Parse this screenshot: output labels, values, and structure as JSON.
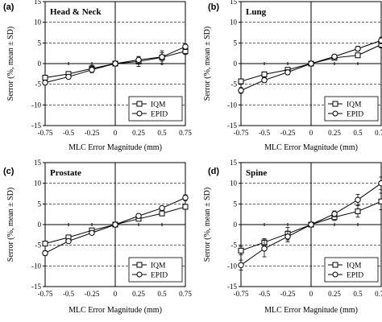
{
  "chart_data": [
    {
      "type": "line",
      "panel": "(a)",
      "title": "Head & Neck",
      "xlabel": "MLC Error Magnitude (mm)",
      "ylabel": "Serror (%, mean ± SD)",
      "xlim": [
        -0.75,
        0.75
      ],
      "ylim": [
        -15,
        15
      ],
      "x": [
        -0.75,
        -0.5,
        -0.25,
        0,
        0.25,
        0.5,
        0.75
      ],
      "x_tick_labels": [
        "-0.75",
        "-0.5",
        "-0.25",
        "0",
        "0.25",
        "0.5",
        "0.75"
      ],
      "y_ticks": [
        -15,
        -10,
        -5,
        0,
        5,
        10,
        15
      ],
      "grid": "horizontal dashed",
      "legend_position": "bottom-right",
      "series": [
        {
          "name": "IQM",
          "marker": "square",
          "values": [
            -3.4,
            -2.5,
            -1.2,
            0,
            0.5,
            1.5,
            3.0
          ],
          "sd": [
            0.5,
            0.5,
            0.8,
            0,
            1.2,
            1.6,
            0.8
          ]
        },
        {
          "name": "EPID",
          "marker": "circle",
          "values": [
            -4.6,
            -3.2,
            -1.5,
            0,
            0.9,
            1.6,
            4.1
          ],
          "sd": [
            0.5,
            0.5,
            0.7,
            0,
            0.8,
            1.0,
            0.7
          ]
        }
      ]
    },
    {
      "type": "line",
      "panel": "(b)",
      "title": "Lung",
      "xlabel": "MLC Error Magnitude (mm)",
      "ylabel": "Serror (%, mean ± SD)",
      "xlim": [
        -0.75,
        0.75
      ],
      "ylim": [
        -15,
        15
      ],
      "x": [
        -0.75,
        -0.5,
        -0.25,
        0,
        0.25,
        0.5,
        0.75
      ],
      "x_tick_labels": [
        "-0.75",
        "-0.5",
        "-0.25",
        "0",
        "0.25",
        "0.5",
        "0.75"
      ],
      "y_ticks": [
        -15,
        -10,
        -5,
        0,
        5,
        10,
        15
      ],
      "grid": "horizontal dashed",
      "legend_position": "bottom-right",
      "series": [
        {
          "name": "IQM",
          "marker": "square",
          "values": [
            -4.3,
            -2.6,
            -1.5,
            0,
            1.4,
            2.0,
            4.6
          ],
          "sd": [
            0.6,
            0.6,
            0.5,
            0,
            0.4,
            0.5,
            0.8
          ]
        },
        {
          "name": "EPID",
          "marker": "circle",
          "values": [
            -6.5,
            -4.0,
            -2.1,
            0,
            1.7,
            3.6,
            5.6
          ],
          "sd": [
            0.7,
            0.6,
            0.6,
            0,
            0.5,
            0.6,
            0.8
          ]
        }
      ]
    },
    {
      "type": "line",
      "panel": "(c)",
      "title": "Prostate",
      "xlabel": "MLC Error Magnitude (mm)",
      "ylabel": "Serror (%, mean ± SD)",
      "xlim": [
        -0.75,
        0.75
      ],
      "ylim": [
        -15,
        15
      ],
      "x": [
        -0.75,
        -0.5,
        -0.25,
        0,
        0.25,
        0.5,
        0.75
      ],
      "x_tick_labels": [
        "-0.75",
        "-0.5",
        "-0.25",
        "0",
        "0.25",
        "0.5",
        "0.75"
      ],
      "y_ticks": [
        -15,
        -10,
        -5,
        0,
        5,
        10,
        15
      ],
      "grid": "horizontal dashed",
      "legend_position": "bottom-right",
      "series": [
        {
          "name": "IQM",
          "marker": "square",
          "values": [
            -4.6,
            -3.1,
            -1.4,
            0,
            1.4,
            2.7,
            4.3
          ],
          "sd": [
            0.5,
            0.4,
            0.4,
            0,
            0.4,
            0.4,
            0.6
          ]
        },
        {
          "name": "EPID",
          "marker": "circle",
          "values": [
            -6.9,
            -4.0,
            -2.0,
            0,
            2.1,
            4.0,
            6.5
          ],
          "sd": [
            0.6,
            0.5,
            0.4,
            0,
            0.5,
            0.5,
            0.7
          ]
        }
      ]
    },
    {
      "type": "line",
      "panel": "(d)",
      "title": "Spine",
      "xlabel": "MLC Error Magnitude (mm)",
      "ylabel": "Serror (%, mean ± SD)",
      "xlim": [
        -0.75,
        0.75
      ],
      "ylim": [
        -15,
        15
      ],
      "x": [
        -0.75,
        -0.5,
        -0.25,
        0,
        0.25,
        0.5,
        0.75
      ],
      "x_tick_labels": [
        "-0.75",
        "-0.5",
        "-0.25",
        "0",
        "0.25",
        "0.5",
        "0.75"
      ],
      "y_ticks": [
        -15,
        -10,
        -5,
        0,
        5,
        10,
        15
      ],
      "grid": "horizontal dashed",
      "legend_position": "bottom-right",
      "series": [
        {
          "name": "IQM",
          "marker": "square",
          "values": [
            -6.3,
            -4.3,
            -2.2,
            0,
            1.8,
            3.2,
            5.6
          ],
          "sd": [
            1.0,
            0.9,
            1.5,
            0,
            0.8,
            1.4,
            2.0
          ]
        },
        {
          "name": "EPID",
          "marker": "circle",
          "values": [
            -9.8,
            -5.8,
            -2.9,
            0,
            2.6,
            6.0,
            10.0
          ],
          "sd": [
            1.2,
            2.0,
            1.3,
            0,
            0.7,
            1.3,
            1.5
          ]
        }
      ]
    }
  ]
}
